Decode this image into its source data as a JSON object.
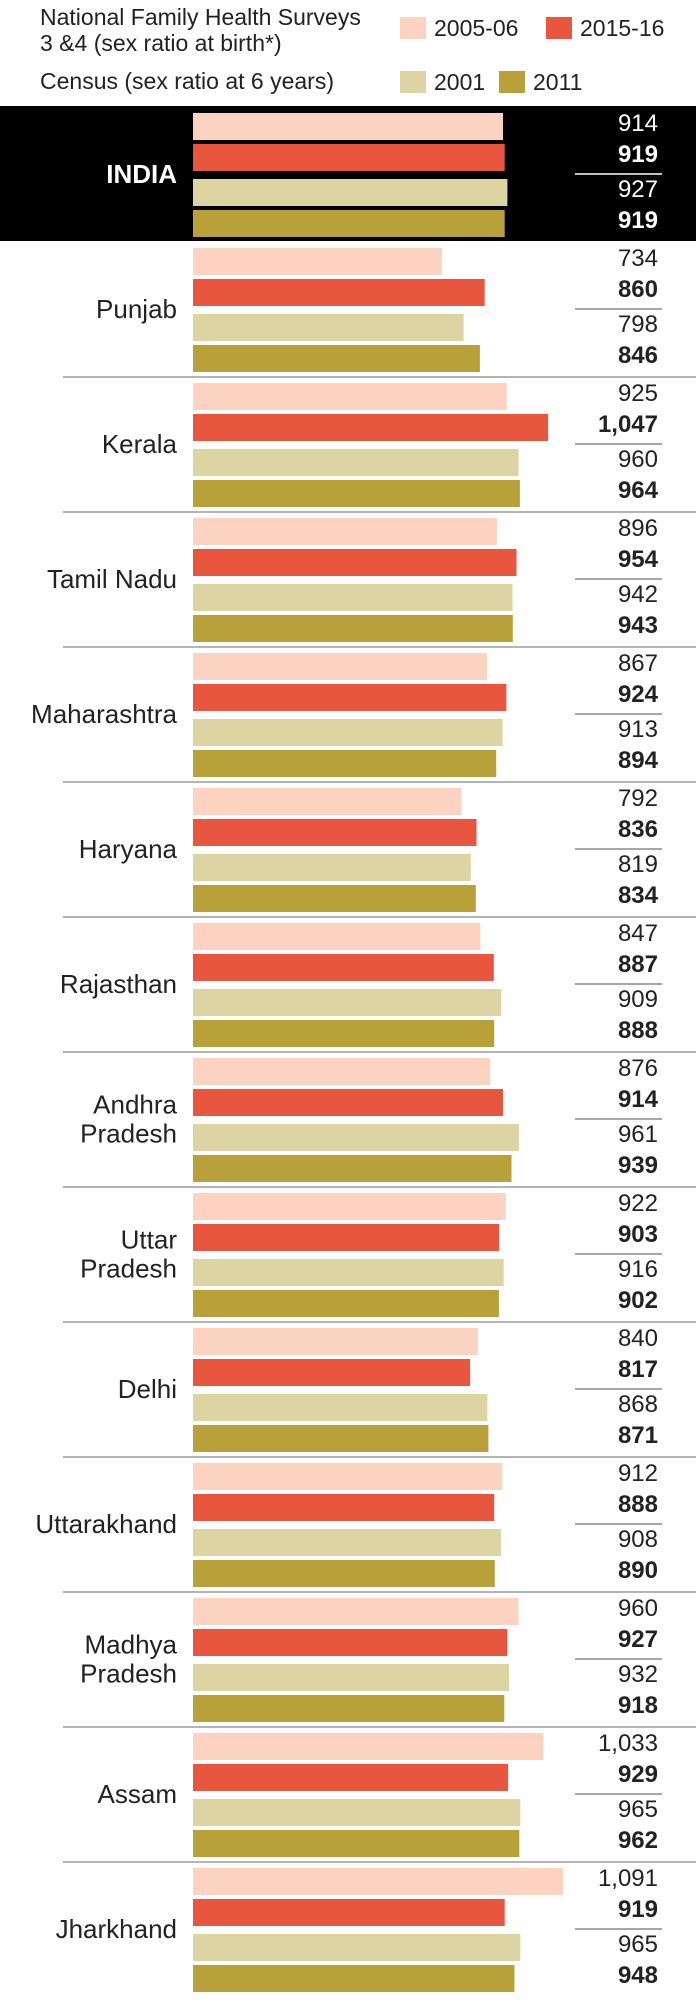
{
  "legend": {
    "surveys_line1": "National Family Health Surveys",
    "surveys_line2": "3 &4 (sex ratio at birth*)",
    "census_line": "Census (sex ratio at 6 years)",
    "series_labels": [
      "2005-06",
      "2015-16",
      "2001",
      "2011"
    ]
  },
  "colors": {
    "2005-06": "#fcd3c1",
    "2015-16": "#e8563f",
    "2001": "#ddd4a3",
    "2011": "#b9a13a",
    "india_band": "#000000",
    "divider": "#888888"
  },
  "chart_data": {
    "type": "bar",
    "orientation": "horizontal",
    "title": "",
    "xlabel": "",
    "ylabel": "",
    "xlim": [
      0,
      1091
    ],
    "grid": false,
    "legend_position": "top",
    "categories": [
      "INDIA",
      "Punjab",
      "Kerala",
      "Tamil Nadu",
      "Maharashtra",
      "Haryana",
      "Rajasthan",
      "Andhra Pradesh",
      "Uttar Pradesh",
      "Delhi",
      "Uttarakhand",
      "Madhya Pradesh",
      "Assam",
      "Jharkhand"
    ],
    "category_lines": [
      [
        "INDIA"
      ],
      [
        "Punjab"
      ],
      [
        "Kerala"
      ],
      [
        "Tamil Nadu"
      ],
      [
        "Maharashtra"
      ],
      [
        "Haryana"
      ],
      [
        "Rajasthan"
      ],
      [
        "Andhra",
        "Pradesh"
      ],
      [
        "Uttar",
        "Pradesh"
      ],
      [
        "Delhi"
      ],
      [
        "Uttarakhand"
      ],
      [
        "Madhya",
        "Pradesh"
      ],
      [
        "Assam"
      ],
      [
        "Jharkhand"
      ]
    ],
    "series": [
      {
        "name": "2005-06",
        "values": [
          914,
          734,
          925,
          896,
          867,
          792,
          847,
          876,
          922,
          840,
          912,
          960,
          1033,
          1091
        ]
      },
      {
        "name": "2015-16",
        "values": [
          919,
          860,
          1047,
          954,
          924,
          836,
          887,
          914,
          903,
          817,
          888,
          927,
          929,
          919
        ]
      },
      {
        "name": "2001",
        "values": [
          927,
          798,
          960,
          942,
          913,
          819,
          909,
          961,
          916,
          868,
          908,
          932,
          965,
          965
        ]
      },
      {
        "name": "2011",
        "values": [
          919,
          846,
          964,
          943,
          894,
          834,
          888,
          939,
          902,
          871,
          890,
          918,
          962,
          948
        ]
      }
    ],
    "value_labels": [
      [
        "914",
        "919",
        "927",
        "919"
      ],
      [
        "734",
        "860",
        "798",
        "846"
      ],
      [
        "925",
        "1,047",
        "960",
        "964"
      ],
      [
        "896",
        "954",
        "942",
        "943"
      ],
      [
        "867",
        "924",
        "913",
        "894"
      ],
      [
        "792",
        "836",
        "819",
        "834"
      ],
      [
        "847",
        "887",
        "909",
        "888"
      ],
      [
        "876",
        "914",
        "961",
        "939"
      ],
      [
        "922",
        "903",
        "916",
        "902"
      ],
      [
        "840",
        "817",
        "868",
        "871"
      ],
      [
        "912",
        "888",
        "908",
        "890"
      ],
      [
        "960",
        "927",
        "932",
        "918"
      ],
      [
        "1,033",
        "929",
        "965",
        "962"
      ],
      [
        "1,091",
        "919",
        "965",
        "948"
      ]
    ]
  }
}
